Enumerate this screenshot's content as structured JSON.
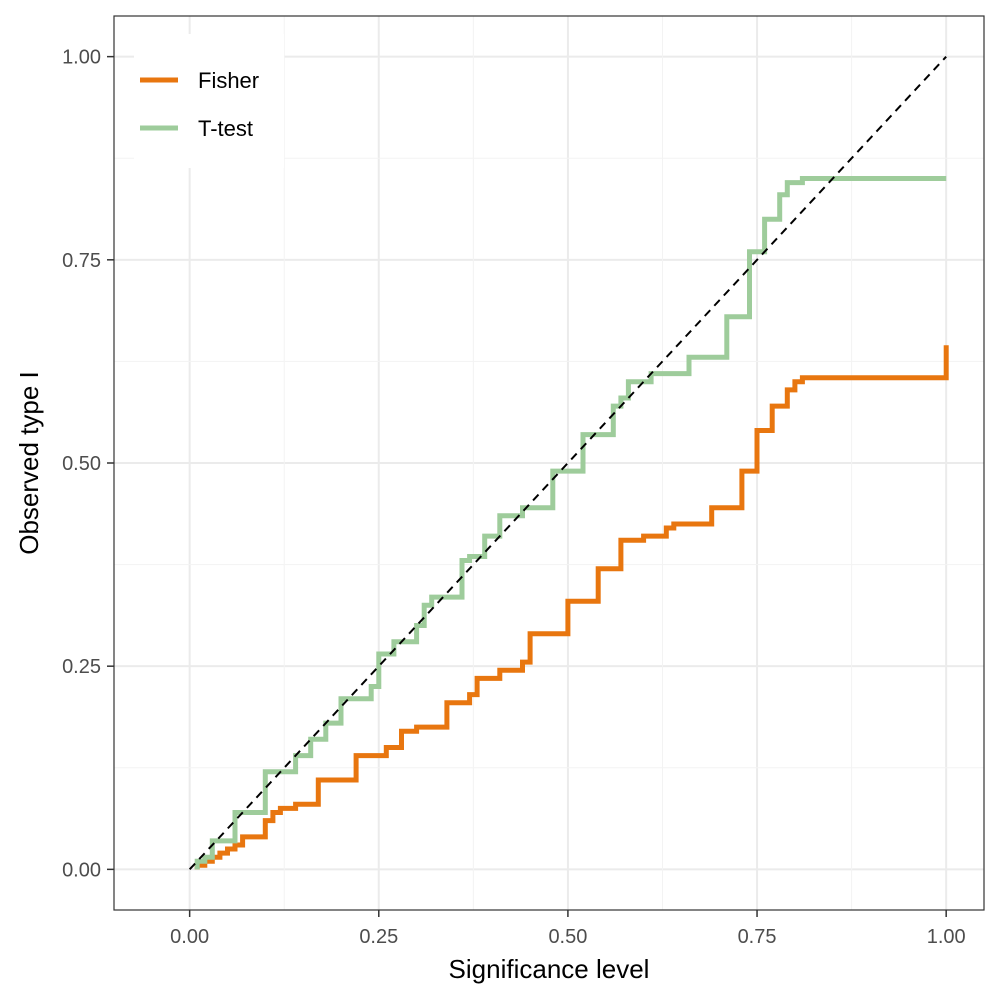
{
  "chart_data": {
    "type": "line",
    "title": "",
    "xlabel": "Significance level",
    "ylabel": "Observed type I",
    "xlim": [
      -0.1,
      1.05
    ],
    "ylim": [
      -0.05,
      1.05
    ],
    "x_ticks": [
      0.0,
      0.25,
      0.5,
      0.75,
      1.0
    ],
    "y_ticks": [
      0.0,
      0.25,
      0.5,
      0.75,
      1.0
    ],
    "x_tick_labels": [
      "0.00",
      "0.25",
      "0.50",
      "0.75",
      "1.00"
    ],
    "y_tick_labels": [
      "0.00",
      "0.25",
      "0.50",
      "0.75",
      "1.00"
    ],
    "grid": true,
    "legend_position": "top-left",
    "reference_line": {
      "style": "dashed",
      "color": "#000000",
      "from": [
        0,
        0
      ],
      "to": [
        1,
        1
      ]
    },
    "series": [
      {
        "name": "Fisher",
        "color": "#E8760F",
        "step": true,
        "x": [
          0.01,
          0.02,
          0.03,
          0.04,
          0.05,
          0.06,
          0.07,
          0.1,
          0.11,
          0.12,
          0.14,
          0.17,
          0.22,
          0.26,
          0.28,
          0.3,
          0.34,
          0.37,
          0.38,
          0.41,
          0.44,
          0.45,
          0.5,
          0.54,
          0.57,
          0.6,
          0.63,
          0.64,
          0.69,
          0.73,
          0.75,
          0.77,
          0.79,
          0.8,
          0.81,
          1.0
        ],
        "y": [
          0.005,
          0.01,
          0.015,
          0.02,
          0.025,
          0.03,
          0.04,
          0.06,
          0.07,
          0.075,
          0.08,
          0.11,
          0.14,
          0.15,
          0.17,
          0.175,
          0.205,
          0.215,
          0.235,
          0.245,
          0.255,
          0.29,
          0.33,
          0.37,
          0.405,
          0.41,
          0.42,
          0.425,
          0.445,
          0.49,
          0.54,
          0.57,
          0.59,
          0.6,
          0.605,
          0.645
        ]
      },
      {
        "name": "T-test",
        "color": "#9ECC9B",
        "step": true,
        "x": [
          0.01,
          0.02,
          0.03,
          0.06,
          0.1,
          0.14,
          0.16,
          0.18,
          0.2,
          0.24,
          0.25,
          0.27,
          0.3,
          0.31,
          0.32,
          0.36,
          0.37,
          0.39,
          0.41,
          0.44,
          0.48,
          0.52,
          0.56,
          0.57,
          0.58,
          0.61,
          0.63,
          0.66,
          0.71,
          0.74,
          0.76,
          0.78,
          0.79,
          0.81,
          1.0
        ],
        "y": [
          0.01,
          0.015,
          0.035,
          0.07,
          0.12,
          0.14,
          0.16,
          0.18,
          0.21,
          0.225,
          0.265,
          0.28,
          0.3,
          0.325,
          0.335,
          0.38,
          0.385,
          0.41,
          0.435,
          0.445,
          0.49,
          0.535,
          0.57,
          0.58,
          0.6,
          0.61,
          0.61,
          0.63,
          0.68,
          0.76,
          0.8,
          0.83,
          0.845,
          0.85,
          0.85
        ]
      }
    ]
  }
}
